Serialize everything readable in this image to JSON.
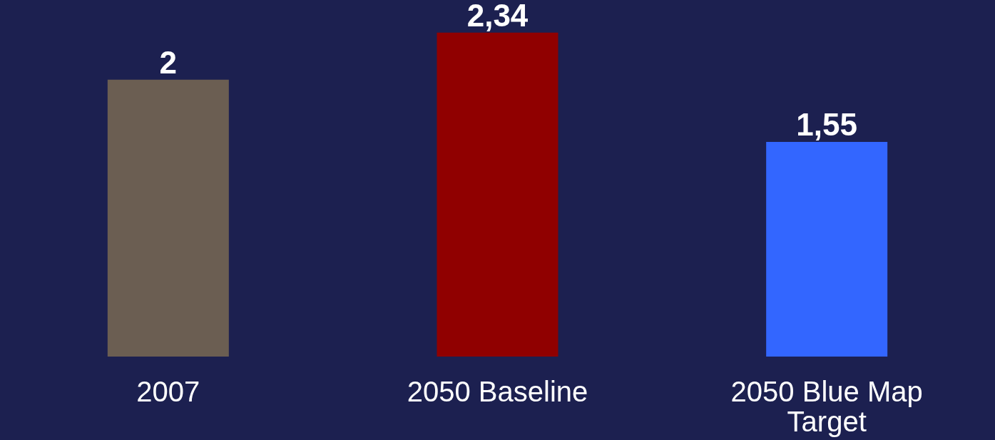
{
  "chart_data": {
    "type": "bar",
    "categories": [
      "2007",
      "2050 Baseline",
      "2050 Blue Map Target"
    ],
    "values": [
      2,
      2.34,
      1.55
    ],
    "colors": [
      "#6b5e52",
      "#900000",
      "#3366ff"
    ],
    "value_labels": [
      "2",
      "2,34",
      "1,55"
    ],
    "grid": false
  }
}
